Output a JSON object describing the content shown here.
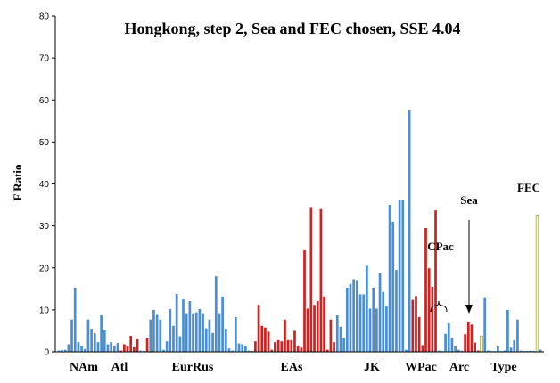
{
  "chart_data": {
    "type": "bar",
    "title": "Hongkong, step 2, Sea and FEC chosen, SSE 4.04",
    "ylabel": "F Ratio",
    "xlabel": "",
    "ylim": [
      0,
      80
    ],
    "yticks": [
      "0",
      "10",
      "20",
      "30",
      "40",
      "50",
      "60",
      "70",
      "80"
    ],
    "grid": false,
    "colors": {
      "blue": "#4a8fd6",
      "red": "#cc2222",
      "yellow": "#ffffa0"
    },
    "group_labels": [
      "NAm",
      "Atl",
      "EurRus",
      "EAs",
      "JK",
      "WPac",
      "Arc",
      "Type"
    ],
    "annotations": [
      "CPac",
      "Sea",
      "FEC"
    ],
    "segments": [
      {
        "color": "blue",
        "values": [
          0.3,
          0.4,
          0.5,
          1.8,
          7.7,
          15.3,
          2.3,
          1.5,
          0.7,
          7.7,
          5.5,
          4.4,
          2.3,
          8.7,
          5.3,
          1.8,
          2.3,
          1.5,
          2.1
        ]
      },
      {
        "color": "red",
        "values": [
          0.3,
          1.8,
          1.3,
          3.8,
          1.1,
          3.0
        ]
      },
      {
        "color": "blue",
        "values": [
          0.3,
          0.2
        ]
      },
      {
        "color": "red",
        "values": [
          3.2
        ]
      },
      {
        "color": "blue",
        "values": [
          7.7,
          10.0,
          8.8,
          7.7,
          0.5,
          2.5,
          10.2,
          6.2,
          13.8,
          3.7,
          12.5,
          9.2,
          12.1,
          9.2,
          9.4,
          10.2,
          9.2,
          5.6,
          7.7,
          4.5,
          18.0,
          9.2,
          13.2,
          5.5,
          0.8,
          0.3,
          8.3,
          2.0,
          1.8,
          1.5,
          0.3
        ]
      },
      {
        "color": "red",
        "values": [
          0.2,
          2.5,
          11.2,
          6.2,
          5.8,
          4.8,
          0.5,
          2.3,
          2.8,
          2.5,
          7.7,
          2.8,
          2.8,
          5.0,
          1.5,
          1.0,
          24.2,
          10.3,
          34.5,
          11.2,
          12.1,
          34.0,
          13.2,
          0.5,
          7.7,
          2.3
        ]
      },
      {
        "color": "blue",
        "values": [
          8.7,
          6.0,
          3.2,
          15.3,
          16.2,
          17.3,
          17.1,
          13.7,
          13.7,
          20.5,
          10.3,
          15.3,
          10.3,
          18.7,
          14.3,
          10.8,
          35.0,
          31.0,
          19.5,
          36.3,
          36.3,
          0.5,
          57.5
        ]
      },
      {
        "color": "red",
        "values": [
          12.4,
          13.3,
          8.3,
          1.6,
          29.5,
          19.9,
          15.5,
          33.7
        ]
      },
      {
        "color": "blue",
        "values": [
          0.3,
          0.2,
          4.3,
          6.8,
          3.2,
          1.3,
          0.5,
          0.3
        ]
      },
      {
        "color": "red",
        "values": [
          4.2,
          7.2,
          6.5,
          2.2,
          0.3
        ]
      },
      {
        "color": "yellow",
        "values": [
          3.8
        ]
      },
      {
        "color": "blue",
        "values": [
          12.8,
          0.3,
          0.2,
          0.2,
          1.3,
          0.2,
          0.3,
          10.0,
          1.0,
          2.8,
          7.7,
          0.3,
          0.2,
          0.2,
          0.3,
          0.2
        ]
      },
      {
        "color": "yellow",
        "values": [
          32.6
        ]
      },
      {
        "color": "blue",
        "values": [
          0.5
        ]
      }
    ]
  }
}
